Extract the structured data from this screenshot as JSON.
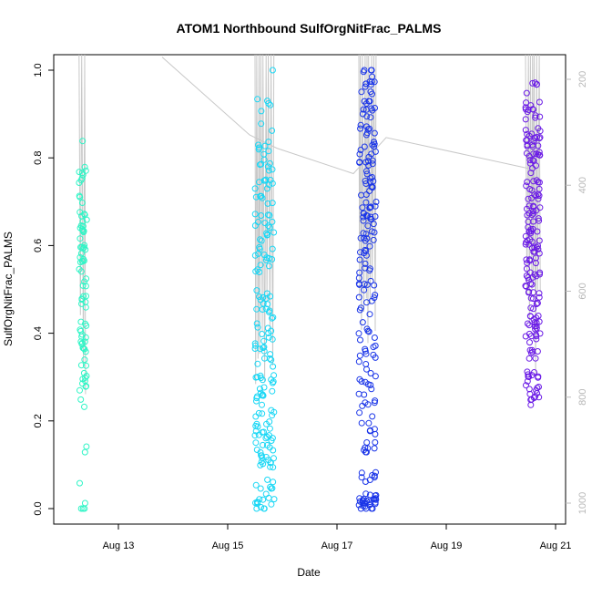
{
  "chart_data": {
    "type": "scatter",
    "title": "ATOM1 Northbound SulfOrgNitFrac_PALMS",
    "xlabel": "Date",
    "ylabel": "SulfOrgNitFrac_PALMS",
    "x_ticks": [
      "Aug 13",
      "Aug 15",
      "Aug 17",
      "Aug 19",
      "Aug 21"
    ],
    "x_tick_days": [
      13,
      15,
      17,
      19,
      21
    ],
    "xlim": [
      12.0,
      21.2
    ],
    "ylim": [
      0.0,
      1.0
    ],
    "y_ticks": [
      0.0,
      0.2,
      0.4,
      0.6,
      0.8,
      1.0
    ],
    "y2_ticks": [
      200,
      400,
      600,
      800,
      1000
    ],
    "y2lim": [
      1000,
      150
    ],
    "grid": false,
    "flights": [
      {
        "color": "#2ff5c6",
        "x_start": 12.28,
        "x_end": 12.42,
        "n": 90,
        "values": [
          0.0,
          0.015,
          0.02,
          0.03,
          0.045,
          0.07,
          0.14,
          0.2,
          0.22,
          0.23,
          0.26,
          0.28,
          0.3,
          0.32,
          0.33,
          0.35,
          0.37,
          0.38,
          0.39,
          0.4,
          0.42,
          0.43,
          0.45,
          0.46,
          0.47,
          0.48,
          0.49,
          0.5,
          0.51,
          0.52,
          0.53,
          0.54,
          0.55,
          0.56,
          0.57,
          0.58,
          0.59,
          0.6,
          0.61,
          0.62,
          0.63,
          0.64,
          0.65,
          0.66,
          0.67,
          0.7,
          0.72,
          0.74,
          0.75,
          0.77,
          0.78,
          0.83
        ]
      },
      {
        "color": "#19d7f5",
        "x_start": 15.5,
        "x_end": 15.85,
        "n": 190,
        "values": [
          0.0,
          0.01,
          0.02,
          0.04,
          0.06,
          0.07,
          0.09,
          0.1,
          0.12,
          0.13,
          0.14,
          0.15,
          0.16,
          0.17,
          0.18,
          0.19,
          0.2,
          0.21,
          0.22,
          0.23,
          0.24,
          0.25,
          0.26,
          0.27,
          0.28,
          0.29,
          0.3,
          0.33,
          0.35,
          0.37,
          0.38,
          0.4,
          0.42,
          0.44,
          0.45,
          0.47,
          0.5,
          0.52,
          0.54,
          0.56,
          0.58,
          0.6,
          0.61,
          0.62,
          0.64,
          0.66,
          0.68,
          0.7,
          0.72,
          0.74,
          0.76,
          0.78,
          0.8,
          0.82,
          0.85,
          0.87,
          0.9,
          0.92,
          0.94,
          1.0
        ]
      },
      {
        "color": "#1a35e8",
        "x_start": 17.4,
        "x_end": 17.72,
        "n": 210,
        "values": [
          0.0,
          0.005,
          0.01,
          0.02,
          0.03,
          0.07,
          0.08,
          0.14,
          0.18,
          0.22,
          0.25,
          0.28,
          0.3,
          0.33,
          0.35,
          0.38,
          0.4,
          0.42,
          0.45,
          0.48,
          0.5,
          0.52,
          0.55,
          0.58,
          0.6,
          0.62,
          0.64,
          0.66,
          0.68,
          0.7,
          0.72,
          0.74,
          0.76,
          0.78,
          0.8,
          0.82,
          0.84,
          0.86,
          0.88,
          0.9,
          0.92,
          0.94,
          0.96,
          1.0
        ]
      },
      {
        "color": "#6a1ae6",
        "x_start": 20.45,
        "x_end": 20.72,
        "n": 190,
        "values": [
          0.25,
          0.27,
          0.3,
          0.35,
          0.39,
          0.41,
          0.43,
          0.45,
          0.48,
          0.5,
          0.52,
          0.54,
          0.56,
          0.58,
          0.6,
          0.62,
          0.64,
          0.66,
          0.68,
          0.7,
          0.72,
          0.74,
          0.76,
          0.78,
          0.8,
          0.82,
          0.84,
          0.86,
          0.88,
          0.9,
          0.92,
          0.96
        ]
      }
    ],
    "transit_line": {
      "color": "#c8c8c8",
      "points": [
        [
          13.8,
          158
        ],
        [
          15.4,
          305
        ],
        [
          15.9,
          330
        ],
        [
          17.3,
          378
        ],
        [
          17.9,
          310
        ],
        [
          20.5,
          368
        ]
      ]
    }
  }
}
